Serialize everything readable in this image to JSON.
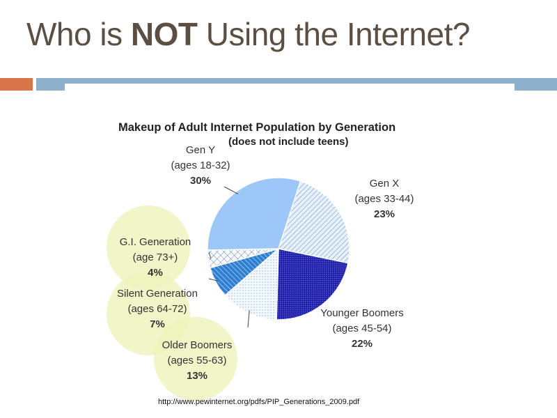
{
  "slide": {
    "title_part1": "Who is ",
    "title_bold": "NOT",
    "title_part2": " Using the Internet?",
    "source": "http://www.pewinternet.org/pdfs/PIP_Generations_2009.pdf"
  },
  "colors": {
    "title": "#5b4f43",
    "accent_bar": "#d9744b",
    "main_bar": "#8fb0cc",
    "highlight_circle": "#eef3bd"
  },
  "chart_data": {
    "type": "pie",
    "title": "Makeup of Adult Internet Population by Generation",
    "subtitle": "(does not include teens)",
    "slices": [
      {
        "name": "Gen Y",
        "ages": "(ages 18-32)",
        "value": 30,
        "label": "30%",
        "color": "#9cc7f7",
        "pattern": "solid"
      },
      {
        "name": "Gen X",
        "ages": "(ages 33-44)",
        "value": 23,
        "label": "23%",
        "color": "#cde0f2",
        "pattern": "diagonal-light"
      },
      {
        "name": "Younger Boomers",
        "ages": "(ages 45-54)",
        "value": 22,
        "label": "22%",
        "color": "#1f1fa8",
        "pattern": "dense-dark"
      },
      {
        "name": "Older Boomers",
        "ages": "(ages 55-63)",
        "value": 13,
        "label": "13%",
        "color": "#eaf2fb",
        "pattern": "dots-light"
      },
      {
        "name": "Silent Generation",
        "ages": "(ages 64-72)",
        "value": 7,
        "label": "7%",
        "color": "#2f7fd0",
        "pattern": "diagonal-medium"
      },
      {
        "name": "G.I. Generation",
        "ages": "(age 73+)",
        "value": 4,
        "label": "4%",
        "color": "#ffffff",
        "pattern": "crosshatch"
      }
    ],
    "highlighted": [
      "G.I. Generation",
      "Silent Generation",
      "Older Boomers"
    ]
  }
}
